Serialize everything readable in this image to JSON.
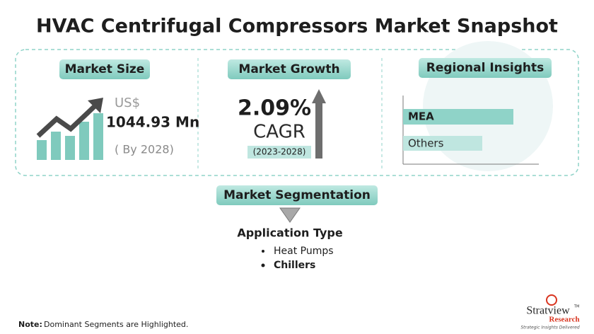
{
  "header": {
    "title": "HVAC Centrifugal Compressors Market Snapshot"
  },
  "market_size": {
    "heading": "Market Size",
    "currency": "US$",
    "value": "1044.93 Mn",
    "year_note": "( By 2028)"
  },
  "market_growth": {
    "heading": "Market Growth",
    "value": "2.09%",
    "label": "CAGR",
    "period": "(2023-2028)"
  },
  "regional_insights": {
    "heading": "Regional Insights",
    "items": [
      "MEA",
      "Others"
    ]
  },
  "segmentation": {
    "heading": "Market Segmentation",
    "category": "Application Type",
    "items": [
      "Heat Pumps",
      "Chillers"
    ]
  },
  "footer": {
    "note_label": "Note:",
    "note_text": "Dominant Segments are Highlighted."
  },
  "logo": {
    "name": "Stratview",
    "trademark": "TM",
    "subname": "Research",
    "tagline": "Strategic Insights Delivered"
  }
}
